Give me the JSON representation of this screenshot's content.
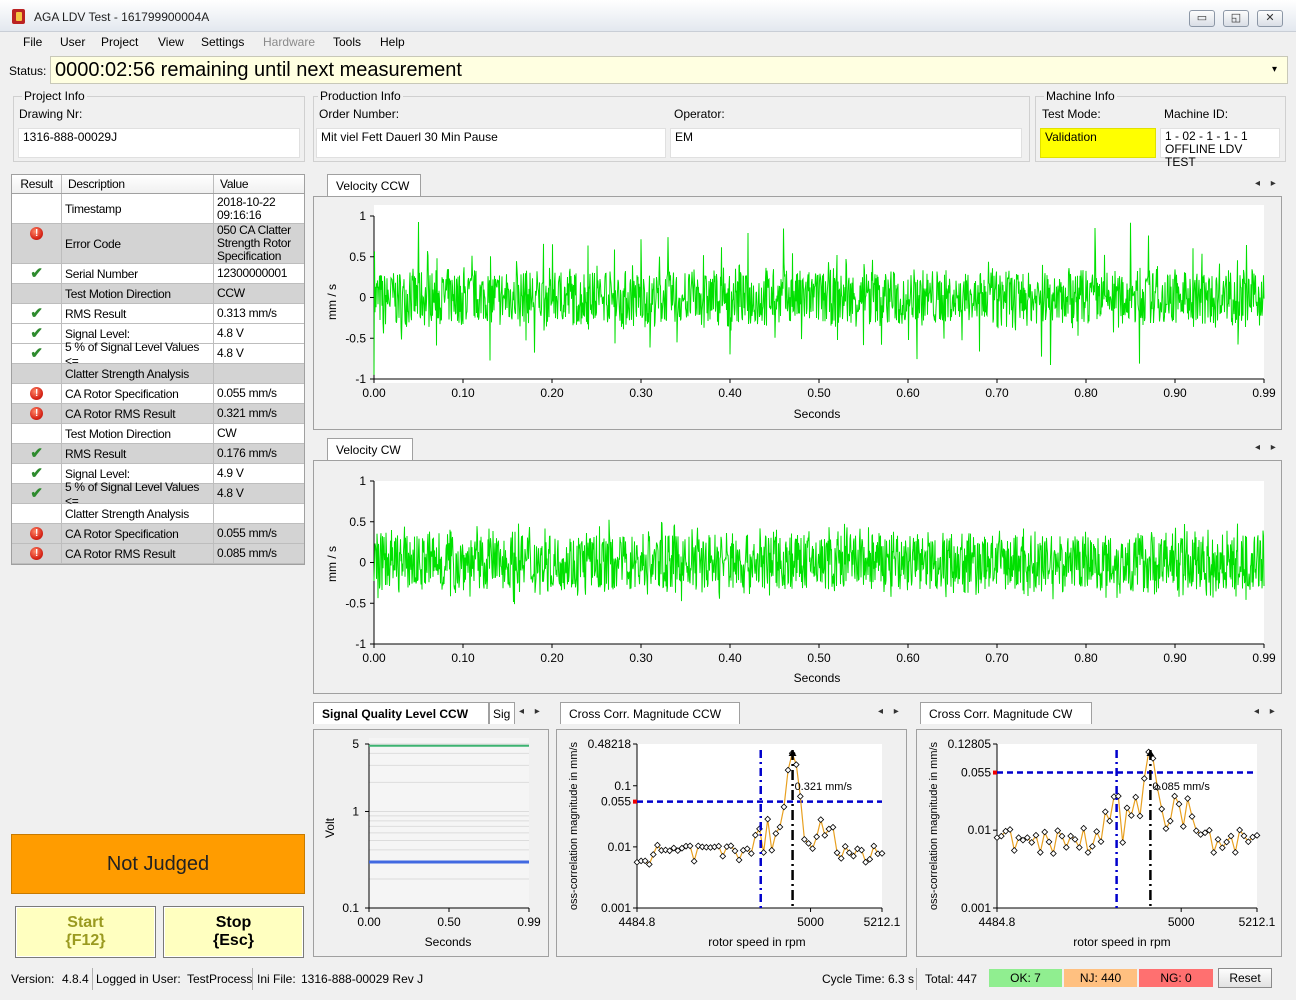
{
  "window": {
    "title": "AGA LDV Test - 161799900004A",
    "minimize": "▭",
    "maximize": "◱",
    "close": "✕"
  },
  "menu": [
    "File",
    "User",
    "Project",
    "View",
    "Settings",
    "Hardware",
    "Tools",
    "Help"
  ],
  "status": {
    "label": "Status:",
    "text": "0000:02:56 remaining until next measurement",
    "dropdown": "▾"
  },
  "project_info": {
    "title": "Project Info",
    "drawing_label": "Drawing Nr:",
    "drawing_value": "1316-888-00029J"
  },
  "production_info": {
    "title": "Production Info",
    "order_label": "Order Number:",
    "order_value": "Mit viel Fett Dauerl 30 Min Pause",
    "operator_label": "Operator:",
    "operator_value": "EM"
  },
  "machine_info": {
    "title": "Machine Info",
    "mode_label": "Test Mode:",
    "mode_value": "Validation",
    "mode_color": "#ffff00",
    "id_label": "Machine ID:",
    "id_value_1": "1 - 02 - 1 - 1 - 1",
    "id_value_2": "OFFLINE LDV TEST"
  },
  "results": {
    "headers": [
      "Result",
      "Description",
      "Value"
    ],
    "rows": [
      {
        "result": "",
        "desc": "Timestamp",
        "value": "2018-10-22 09:16:16"
      },
      {
        "result": "error",
        "desc": "Error Code",
        "value": "050 CA Clatter Strength Rotor Specification"
      },
      {
        "result": "ok",
        "desc": "Serial Number",
        "value": "12300000001"
      },
      {
        "result": "",
        "desc": "Test Motion Direction",
        "value": "CCW"
      },
      {
        "result": "ok",
        "desc": "RMS Result",
        "value": "0.313 mm/s"
      },
      {
        "result": "ok",
        "desc": "Signal Level:",
        "value": "4.8 V"
      },
      {
        "result": "ok",
        "desc": "5 % of Signal Level Values <=",
        "value": "4.8 V"
      },
      {
        "result": "",
        "desc": "Clatter Strength Analysis",
        "value": ""
      },
      {
        "result": "error",
        "desc": "CA Rotor Specification",
        "value": "0.055 mm/s"
      },
      {
        "result": "error",
        "desc": "CA Rotor RMS Result",
        "value": "0.321 mm/s"
      },
      {
        "result": "",
        "desc": "Test Motion Direction",
        "value": "CW"
      },
      {
        "result": "ok",
        "desc": "RMS Result",
        "value": "0.176 mm/s"
      },
      {
        "result": "ok",
        "desc": "Signal Level:",
        "value": "4.9 V"
      },
      {
        "result": "ok",
        "desc": "5 % of Signal Level Values <=",
        "value": "4.8 V"
      },
      {
        "result": "",
        "desc": "Clatter Strength Analysis",
        "value": ""
      },
      {
        "result": "error",
        "desc": "CA Rotor Specification",
        "value": "0.055 mm/s"
      },
      {
        "result": "error",
        "desc": "CA Rotor RMS Result",
        "value": "0.085 mm/s"
      }
    ]
  },
  "verdict": {
    "text": "Not Judged",
    "color": "#ff9c00"
  },
  "buttons": {
    "start_line1": "Start",
    "start_line2": "{F12}",
    "stop_line1": "Stop",
    "stop_line2": "{Esc}"
  },
  "icons": {
    "error": "!",
    "ok": "✔",
    "tab_prev_next": "◂ ▸"
  },
  "tabs": {
    "velocity_ccw": "Velocity CCW",
    "velocity_cw": "Velocity CW",
    "signal_quality": "Signal Quality Level CCW",
    "signal_quality_next": "Sig",
    "cross_ccw": "Cross Corr. Magnitude CCW",
    "cross_cw": "Cross Corr. Magnitude CW"
  },
  "chart_data": [
    {
      "type": "line",
      "name": "velocity-ccw-chart",
      "xlabel": "Seconds",
      "ylabel": "mm / s",
      "xlim": [
        0,
        0.99
      ],
      "ylim": [
        -1,
        1
      ],
      "x_ticks": [
        "0.00",
        "0.10",
        "0.20",
        "0.30",
        "0.40",
        "0.50",
        "0.60",
        "0.70",
        "0.80",
        "0.90",
        "0.99"
      ],
      "y_ticks": [
        "1",
        "0.5",
        "0",
        "-0.5",
        "-1"
      ],
      "series": [
        {
          "color": "#00e000",
          "pattern": "periodic bursts ~100 per second, peak about ±0.95"
        }
      ]
    },
    {
      "type": "line",
      "name": "velocity-cw-chart",
      "xlabel": "Seconds",
      "ylabel": "mm / s",
      "xlim": [
        0,
        0.99
      ],
      "ylim": [
        -1,
        1
      ],
      "x_ticks": [
        "0.00",
        "0.10",
        "0.20",
        "0.30",
        "0.40",
        "0.50",
        "0.60",
        "0.70",
        "0.80",
        "0.90",
        "0.99"
      ],
      "y_ticks": [
        "1",
        "0.5",
        "0",
        "-0.5",
        "-1"
      ],
      "series": [
        {
          "color": "#00e000",
          "pattern": "noise, peak about ±0.6"
        }
      ]
    },
    {
      "type": "line",
      "name": "signal-quality-chart",
      "xlabel": "Seconds",
      "ylabel": "Volt",
      "yscale": "log",
      "xlim": [
        0,
        0.99
      ],
      "ylim": [
        0.1,
        5
      ],
      "x_ticks": [
        "0.00",
        "0.50",
        "0.99"
      ],
      "y_ticks": [
        "5",
        "1",
        "0.1"
      ],
      "series": [
        {
          "color": "#3cb371",
          "values": [
            4.8,
            4.8
          ]
        },
        {
          "color": "#4169e1",
          "values": [
            0.3,
            0.3
          ]
        }
      ]
    },
    {
      "type": "line",
      "name": "cross-corr-ccw-chart",
      "yscale": "log",
      "xlabel": "rotor speed in rpm",
      "ylabel": "oss-correlation magnitude in mm/s",
      "xlim": [
        4484.8,
        5212.1
      ],
      "ylim": [
        0.001,
        0.48218
      ],
      "x_ticks": [
        "4484.8",
        "5000",
        "5212.1"
      ],
      "y_ticks": [
        "0.48218",
        "0.1",
        "0.055",
        "0.01",
        "0.001"
      ],
      "threshold": 0.055,
      "peak_x": 4950,
      "peak_label": "0.321 mm/s",
      "series": [
        {
          "color": "#e8a020",
          "peak": 0.321
        }
      ]
    },
    {
      "type": "line",
      "name": "cross-corr-cw-chart",
      "yscale": "log",
      "xlabel": "rotor speed in rpm",
      "ylabel": "oss-correlation magnitude in mm/s",
      "xlim": [
        4484.8,
        5212.1
      ],
      "ylim": [
        0.001,
        0.12805
      ],
      "x_ticks": [
        "4484.8",
        "5000",
        "5212.1"
      ],
      "y_ticks": [
        "0.12805",
        "0.055",
        "0.01",
        "0.001"
      ],
      "threshold": 0.055,
      "peak_x": 4950,
      "peak_label": "0.085 mm/s",
      "series": [
        {
          "color": "#e8a020",
          "peak": 0.085
        }
      ]
    }
  ],
  "footer": {
    "version_label": "Version:",
    "version": "4.8.4",
    "user_label": "Logged in User:",
    "user": "TestProcess",
    "ini_label": "Ini File:",
    "ini": "1316-888-00029  Rev J",
    "cycle": "Cycle Time: 6.3 s",
    "total": "Total: 447",
    "ok": "OK: 7",
    "nj": "NJ: 440",
    "ng": "NG: 0",
    "ok_color": "#90ee90",
    "nj_color": "#ffc080",
    "ng_color": "#ff7070",
    "reset": "Reset"
  }
}
